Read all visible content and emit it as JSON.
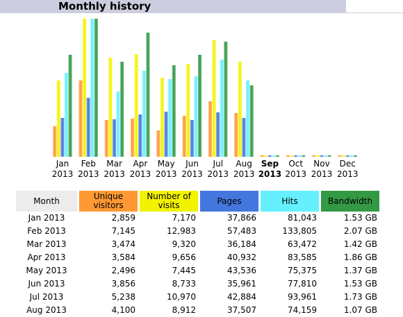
{
  "page": {
    "title": "Monthly history"
  },
  "chart_data": {
    "type": "bar",
    "title": "Monthly history",
    "categories": [
      {
        "month": "Jan",
        "year": "2013"
      },
      {
        "month": "Feb",
        "year": "2013"
      },
      {
        "month": "Mar",
        "year": "2013"
      },
      {
        "month": "Apr",
        "year": "2013"
      },
      {
        "month": "May",
        "year": "2013"
      },
      {
        "month": "Jun",
        "year": "2013"
      },
      {
        "month": "Jul",
        "year": "2013"
      },
      {
        "month": "Aug",
        "year": "2013"
      },
      {
        "month": "Sep",
        "year": "2013"
      },
      {
        "month": "Oct",
        "year": "2013"
      },
      {
        "month": "Nov",
        "year": "2013"
      },
      {
        "month": "Dec",
        "year": "2013"
      }
    ],
    "current_month_index": 8,
    "series": [
      {
        "name": "Unique visitors",
        "color": "#ff9933",
        "max": 12983,
        "values": [
          2859,
          7145,
          3474,
          3584,
          2496,
          3856,
          5238,
          4100,
          0,
          0,
          0,
          0
        ]
      },
      {
        "name": "Number of visits",
        "color": "#f3f300",
        "max": 12983,
        "values": [
          7170,
          12983,
          9320,
          9656,
          7445,
          8733,
          10970,
          8912,
          0,
          0,
          0,
          0
        ]
      },
      {
        "name": "Pages",
        "color": "#4477dd",
        "max": 133805,
        "values": [
          37866,
          57483,
          36184,
          40932,
          43536,
          35961,
          42884,
          37507,
          0,
          0,
          0,
          0
        ]
      },
      {
        "name": "Hits",
        "color": "#66f0ff",
        "max": 133805,
        "values": [
          81043,
          133805,
          63472,
          83585,
          75375,
          77810,
          93961,
          74159,
          0,
          0,
          0,
          0
        ]
      },
      {
        "name": "Bandwidth",
        "color": "#339944",
        "max": 2.07,
        "values": [
          1.53,
          2.07,
          1.42,
          1.86,
          1.37,
          1.53,
          1.73,
          1.07,
          0,
          0,
          0,
          0
        ]
      }
    ]
  },
  "table": {
    "headers": {
      "month": "Month",
      "unique": "Unique visitors",
      "visits": "Number of visits",
      "pages": "Pages",
      "hits": "Hits",
      "bandwidth": "Bandwidth"
    },
    "rows": [
      {
        "month": "Jan 2013",
        "unique": "2,859",
        "visits": "7,170",
        "pages": "37,866",
        "hits": "81,043",
        "bandwidth": "1.53 GB"
      },
      {
        "month": "Feb 2013",
        "unique": "7,145",
        "visits": "12,983",
        "pages": "57,483",
        "hits": "133,805",
        "bandwidth": "2.07 GB"
      },
      {
        "month": "Mar 2013",
        "unique": "3,474",
        "visits": "9,320",
        "pages": "36,184",
        "hits": "63,472",
        "bandwidth": "1.42 GB"
      },
      {
        "month": "Apr 2013",
        "unique": "3,584",
        "visits": "9,656",
        "pages": "40,932",
        "hits": "83,585",
        "bandwidth": "1.86 GB"
      },
      {
        "month": "May 2013",
        "unique": "2,496",
        "visits": "7,445",
        "pages": "43,536",
        "hits": "75,375",
        "bandwidth": "1.37 GB"
      },
      {
        "month": "Jun 2013",
        "unique": "3,856",
        "visits": "8,733",
        "pages": "35,961",
        "hits": "77,810",
        "bandwidth": "1.53 GB"
      },
      {
        "month": "Jul 2013",
        "unique": "5,238",
        "visits": "10,970",
        "pages": "42,884",
        "hits": "93,961",
        "bandwidth": "1.73 GB"
      },
      {
        "month": "Aug 2013",
        "unique": "4,100",
        "visits": "8,912",
        "pages": "37,507",
        "hits": "74,159",
        "bandwidth": "1.07 GB"
      }
    ]
  }
}
